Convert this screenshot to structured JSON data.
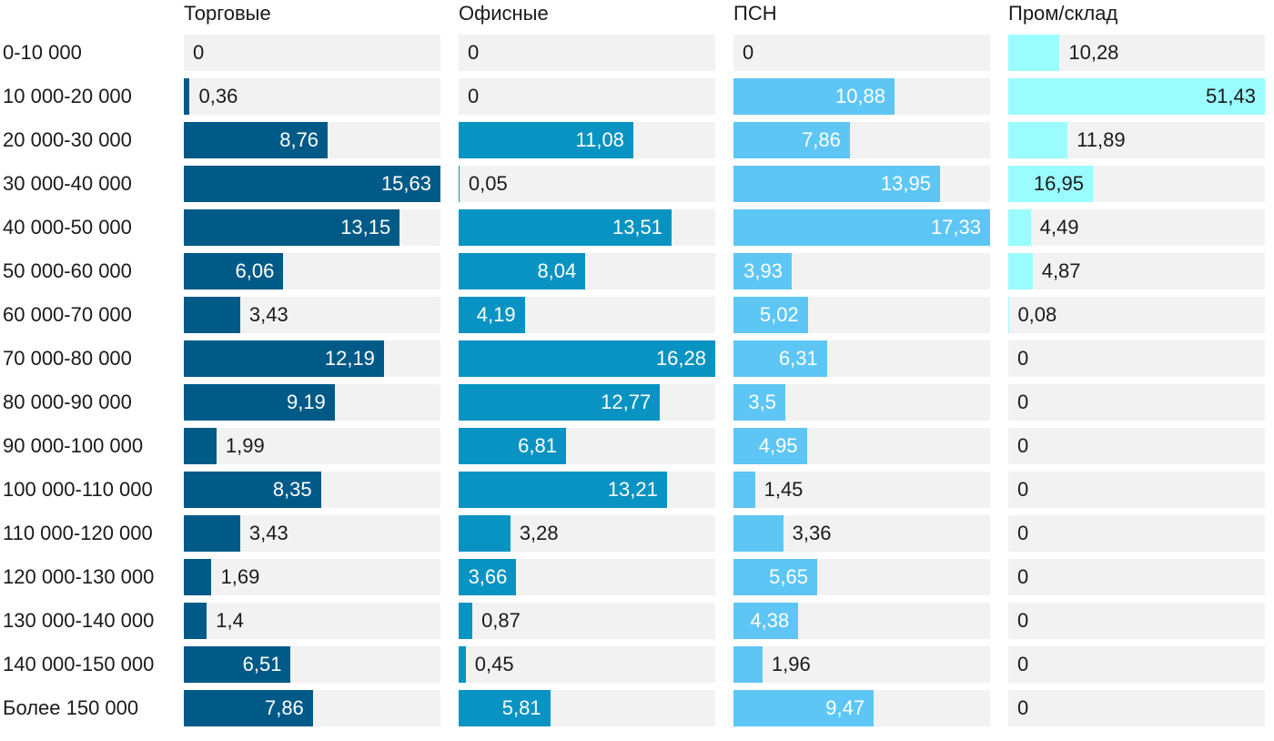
{
  "chart_data": {
    "type": "bar",
    "orientation": "horizontal",
    "layout": "small-multiples",
    "categories": [
      "0-10 000",
      "10 000-20 000",
      "20 000-30 000",
      "30 000-40 000",
      "40 000-50 000",
      "50 000-60 000",
      "60 000-70 000",
      "70 000-80 000",
      "80 000-90 000",
      "90 000-100 000",
      "100 000-110 000",
      "110 000-120 000",
      "120 000-130 000",
      "130 000-140 000",
      "140 000-150 000",
      "Более 150 000"
    ],
    "series": [
      {
        "name": "Торговые",
        "color": "#005a87",
        "xlim": [
          0,
          15.63
        ],
        "values": [
          0,
          0.36,
          8.76,
          15.63,
          13.15,
          6.06,
          3.43,
          12.19,
          9.19,
          1.99,
          8.35,
          3.43,
          1.69,
          1.4,
          6.51,
          7.86
        ],
        "labels": [
          "0",
          "0,36",
          "8,76",
          "15,63",
          "13,15",
          "6,06",
          "3,43",
          "12,19",
          "9,19",
          "1,99",
          "8,35",
          "3,43",
          "1,69",
          "1,4",
          "6,51",
          "7,86"
        ]
      },
      {
        "name": "Офисные",
        "color": "#0993c2",
        "xlim": [
          0,
          16.28
        ],
        "values": [
          0,
          0,
          11.08,
          0.05,
          13.51,
          8.04,
          4.19,
          16.28,
          12.77,
          6.81,
          13.21,
          3.28,
          3.66,
          0.87,
          0.45,
          5.81
        ],
        "labels": [
          "0",
          "0",
          "11,08",
          "0,05",
          "13,51",
          "8,04",
          "4,19",
          "16,28",
          "12,77",
          "6,81",
          "13,21",
          "3,28",
          "3,66",
          "0,87",
          "0,45",
          "5,81"
        ]
      },
      {
        "name": "ПСН",
        "color": "#5ec6f5",
        "xlim": [
          0,
          17.33
        ],
        "values": [
          0,
          10.88,
          7.86,
          13.95,
          17.33,
          3.93,
          5.02,
          6.31,
          3.5,
          4.95,
          1.45,
          3.36,
          5.65,
          4.38,
          1.96,
          9.47
        ],
        "labels": [
          "0",
          "10,88",
          "7,86",
          "13,95",
          "17,33",
          "3,93",
          "5,02",
          "6,31",
          "3,5",
          "4,95",
          "1,45",
          "3,36",
          "5,65",
          "4,38",
          "1,96",
          "9,47"
        ]
      },
      {
        "name": "Пром/склад",
        "color": "#9bfcff",
        "xlim": [
          0,
          51.43
        ],
        "values": [
          10.28,
          51.43,
          11.89,
          16.95,
          4.49,
          4.87,
          0.08,
          0,
          0,
          0,
          0,
          0,
          0,
          0,
          0,
          0
        ],
        "labels": [
          "10,28",
          "51,43",
          "11,89",
          "16,95",
          "4,49",
          "4,87",
          "0,08",
          "0",
          "0",
          "0",
          "0",
          "0",
          "0",
          "0",
          "0",
          "0"
        ]
      }
    ],
    "title": "",
    "xlabel": "",
    "ylabel": "",
    "grid": false,
    "legend": "none"
  }
}
